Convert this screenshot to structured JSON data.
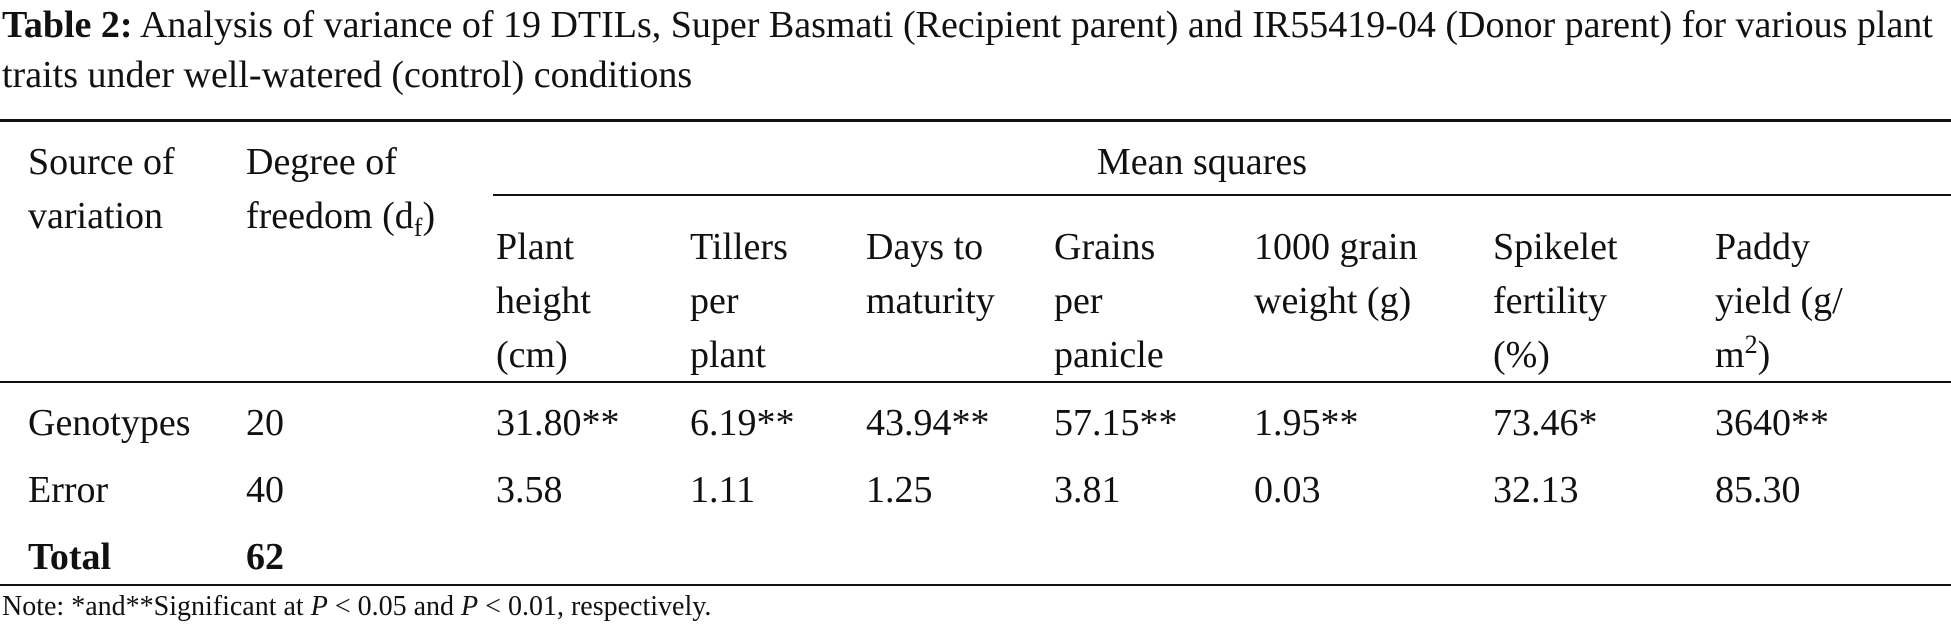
{
  "caption": {
    "label": "Table 2:",
    "text": "Analysis of variance of 19 DTILs, Super Basmati (Recipient parent) and IR55419-04 (Donor parent) for various plant traits under well-watered (control) conditions"
  },
  "headers": {
    "source_line1": "Source of",
    "source_line2": "variation",
    "df_line1": "Degree of",
    "df_line2": "freedom (d",
    "df_sub": "f",
    "df_close": ")",
    "mean_squares": "Mean squares",
    "columns": [
      {
        "l1": "Plant",
        "l2": "height",
        "l3": "(cm)"
      },
      {
        "l1": "Tillers",
        "l2": "per",
        "l3": "plant"
      },
      {
        "l1": "Days to",
        "l2": "maturity",
        "l3": ""
      },
      {
        "l1": "Grains",
        "l2": "per",
        "l3": "panicle"
      },
      {
        "l1": "1000 grain",
        "l2": "weight (g)",
        "l3": ""
      },
      {
        "l1": "Spikelet",
        "l2": "fertility",
        "l3": "(%)"
      },
      {
        "l1": "Paddy",
        "l2": "yield (g/",
        "l3": "m",
        "l3_sup": "2",
        "l3_close": ")"
      }
    ]
  },
  "rows": [
    {
      "source": "Genotypes",
      "df": "20",
      "values": [
        "31.80**",
        "6.19**",
        "43.94**",
        "57.15**",
        "1.95**",
        "73.46*",
        "3640**"
      ]
    },
    {
      "source": "Error",
      "df": "40",
      "values": [
        "3.58",
        "1.11",
        "1.25",
        "3.81",
        "0.03",
        "32.13",
        "85.30"
      ]
    },
    {
      "source": "Total",
      "df": "62",
      "values": [
        "",
        "",
        "",
        "",
        "",
        "",
        ""
      ]
    }
  ],
  "note": {
    "prefix": "Note: *and**Significant at ",
    "p1": "P",
    "mid": " < 0.05 and ",
    "p2": "P",
    "suffix": " < 0.01, respectively."
  }
}
